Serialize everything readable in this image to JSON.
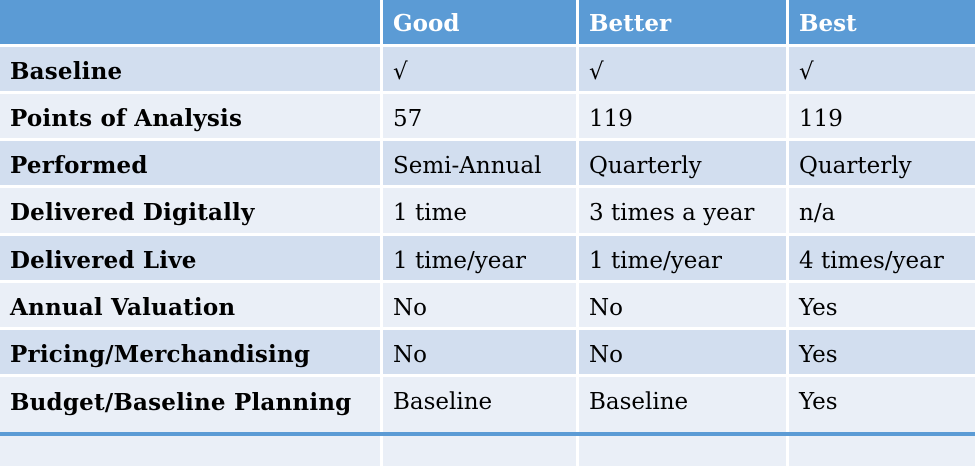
{
  "columns": [
    "",
    "Good",
    "Better",
    "Best"
  ],
  "rows": [
    {
      "label": "Baseline",
      "cells": [
        "√",
        "√",
        "√"
      ]
    },
    {
      "label": "Points of Analysis",
      "cells": [
        "57",
        "119",
        "119"
      ]
    },
    {
      "label": "Performed",
      "cells": [
        "Semi-Annual",
        "Quarterly",
        "Quarterly"
      ]
    },
    {
      "label": "Delivered Digitally",
      "cells": [
        "1 time",
        "3 times a year",
        "n/a"
      ]
    },
    {
      "label": "Delivered Live",
      "cells": [
        "1 time/year",
        "1 time/year",
        "4 times/year"
      ]
    },
    {
      "label": "Annual Valuation",
      "cells": [
        "No",
        "No",
        "Yes"
      ]
    },
    {
      "label": "Pricing/Merchandising",
      "cells": [
        "No",
        "No",
        "Yes"
      ]
    },
    {
      "label": "Budget/Baseline Planning",
      "cells": [
        "Baseline",
        "Baseline",
        "Yes"
      ]
    }
  ],
  "colors": {
    "header": "#5b9bd5",
    "row_dark": "#d2deef",
    "row_light": "#eaeff7"
  }
}
